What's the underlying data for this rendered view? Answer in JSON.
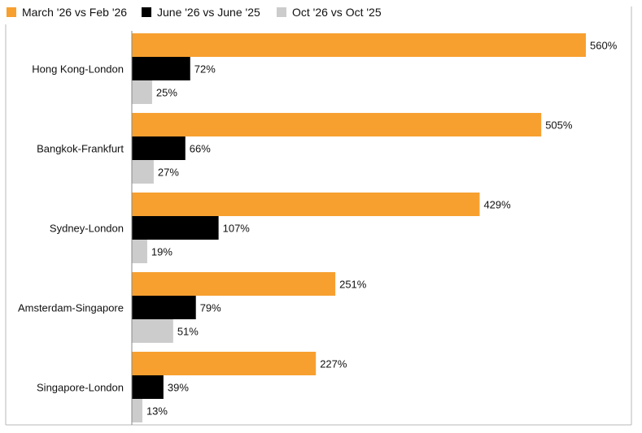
{
  "chart_data": {
    "type": "bar",
    "orientation": "horizontal",
    "categories": [
      "Hong Kong-London",
      "Bangkok-Frankfurt",
      "Sydney-London",
      "Amsterdam-Singapore",
      "Singapore-London"
    ],
    "series": [
      {
        "name": "March '26 vs Feb '26",
        "color": "#f7a030",
        "values": [
          560,
          505,
          429,
          251,
          227
        ]
      },
      {
        "name": "June '26 vs June '25",
        "color": "#000000",
        "values": [
          72,
          66,
          107,
          79,
          39
        ]
      },
      {
        "name": "Oct '26 vs Oct '25",
        "color": "#cccccc",
        "values": [
          25,
          27,
          19,
          51,
          13
        ]
      }
    ],
    "value_suffix": "%",
    "xlim": [
      0,
      600
    ],
    "legend_position": "top-left",
    "grid": false
  }
}
